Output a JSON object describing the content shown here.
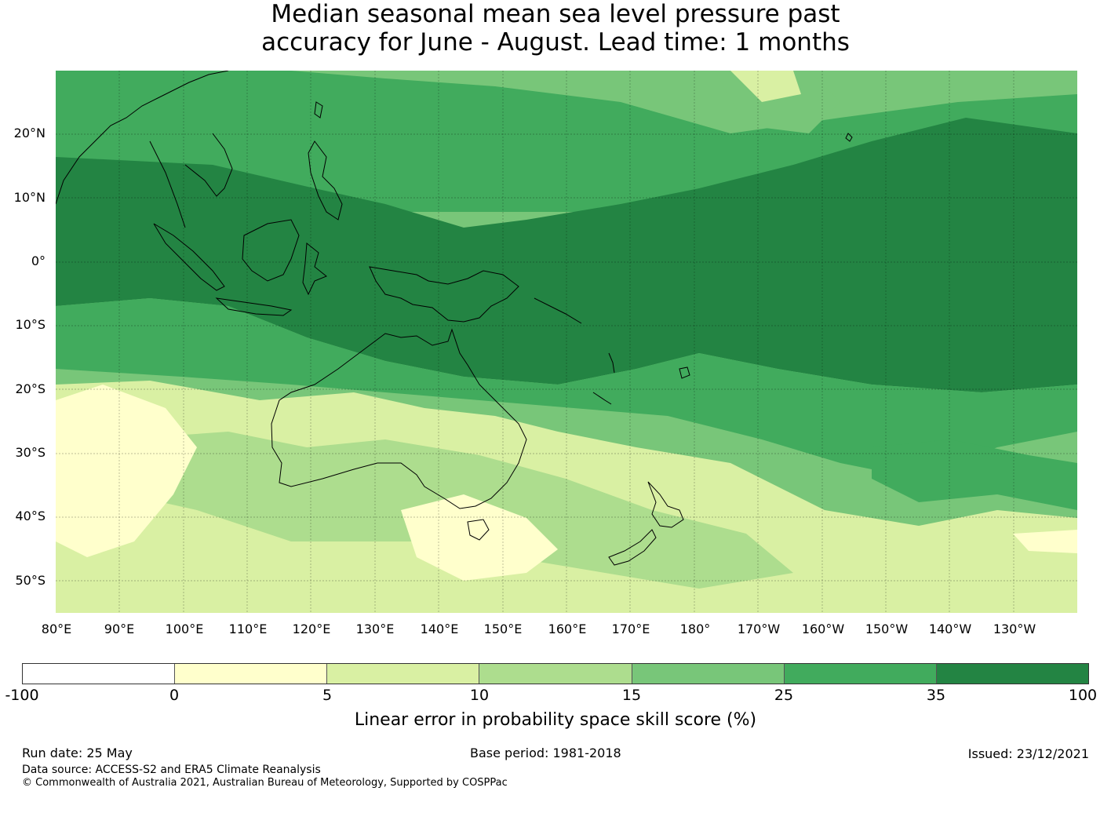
{
  "title_line1": "Median seasonal mean sea level pressure past",
  "title_line2": "accuracy for June - August. Lead time: 1 months",
  "map": {
    "lon_labels": [
      "80°E",
      "90°E",
      "100°E",
      "110°E",
      "120°E",
      "130°E",
      "140°E",
      "150°E",
      "160°E",
      "170°E",
      "180°",
      "170°W",
      "160°W",
      "150°W",
      "140°W",
      "130°W"
    ],
    "lat_labels": [
      "20°N",
      "10°N",
      "0°",
      "10°S",
      "20°S",
      "30°S",
      "40°S",
      "50°S"
    ],
    "projection": "equirectangular",
    "lon_range": [
      80,
      240
    ],
    "lat_range": [
      -55,
      30
    ],
    "gridlines": true
  },
  "colorbar": {
    "colors": [
      "#ffffff",
      "#ffffcc",
      "#d9f0a3",
      "#addd8e",
      "#78c679",
      "#41ab5d",
      "#238443"
    ],
    "ticks": [
      "-100",
      "0",
      "5",
      "10",
      "15",
      "25",
      "35",
      "100"
    ],
    "label": "Linear error in probability space skill score (%)"
  },
  "footer": {
    "run_date": "Run date: 25 May",
    "base_period": "Base period: 1981-2018",
    "issued": "Issued: 23/12/2021",
    "data_source": "Data source: ACCESS-S2 and ERA5 Climate Reanalysis",
    "copyright": "© Commonwealth of Australia 2021, Australian Bureau of Meteorology, Supported by COSPPac"
  }
}
